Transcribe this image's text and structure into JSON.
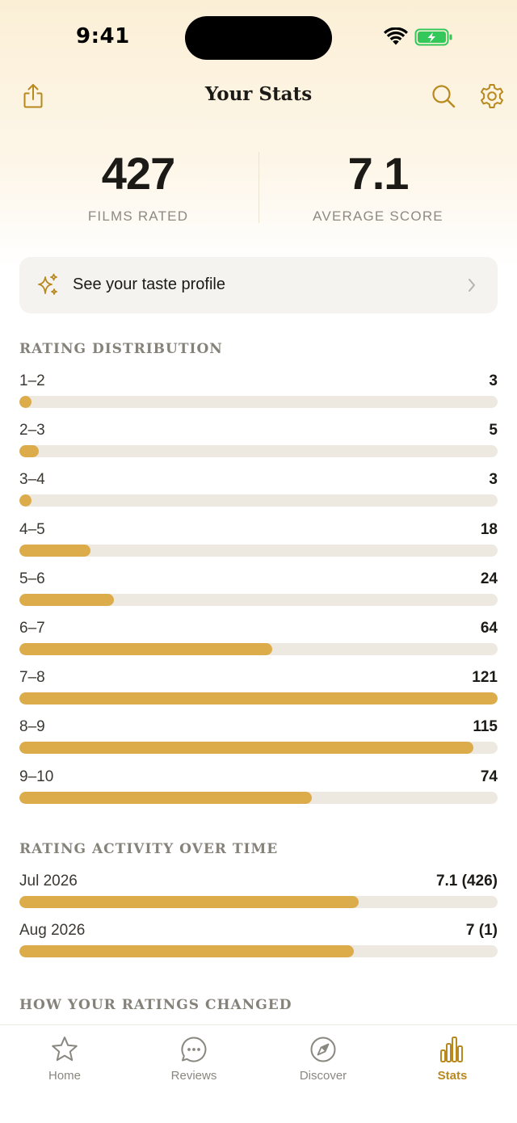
{
  "status": {
    "time": "9:41"
  },
  "header": {
    "title": "Your Stats"
  },
  "summary": {
    "films_rated": {
      "value": "427",
      "label": "FILMS RATED"
    },
    "average_score": {
      "value": "7.1",
      "label": "AVERAGE SCORE"
    }
  },
  "taste_card": {
    "label": "See your taste profile"
  },
  "distribution": {
    "title": "RATING DISTRIBUTION",
    "rows": [
      {
        "label": "1–2",
        "value": "3",
        "fraction": 0.025
      },
      {
        "label": "2–3",
        "value": "5",
        "fraction": 0.041
      },
      {
        "label": "3–4",
        "value": "3",
        "fraction": 0.025
      },
      {
        "label": "4–5",
        "value": "18",
        "fraction": 0.149
      },
      {
        "label": "5–6",
        "value": "24",
        "fraction": 0.198
      },
      {
        "label": "6–7",
        "value": "64",
        "fraction": 0.529
      },
      {
        "label": "7–8",
        "value": "121",
        "fraction": 1.0
      },
      {
        "label": "8–9",
        "value": "115",
        "fraction": 0.95
      },
      {
        "label": "9–10",
        "value": "74",
        "fraction": 0.612
      }
    ]
  },
  "activity": {
    "title": "RATING ACTIVITY OVER TIME",
    "rows": [
      {
        "label": "Jul 2026",
        "value": "7.1  (426)",
        "fraction": 0.71
      },
      {
        "label": "Aug 2026",
        "value": "7  (1)",
        "fraction": 0.7
      }
    ]
  },
  "changes": {
    "title": "HOW YOUR RATINGS CHANGED"
  },
  "tabs": [
    {
      "label": "Home",
      "icon": "star-icon",
      "active": false
    },
    {
      "label": "Reviews",
      "icon": "chat-bubble-icon",
      "active": false
    },
    {
      "label": "Discover",
      "icon": "compass-icon",
      "active": false
    },
    {
      "label": "Stats",
      "icon": "bar-chart-icon",
      "active": true
    }
  ],
  "colors": {
    "accent": "#dcac4a",
    "accent_dark": "#b8891f",
    "track": "#ede9e1",
    "battery": "#34c759"
  }
}
